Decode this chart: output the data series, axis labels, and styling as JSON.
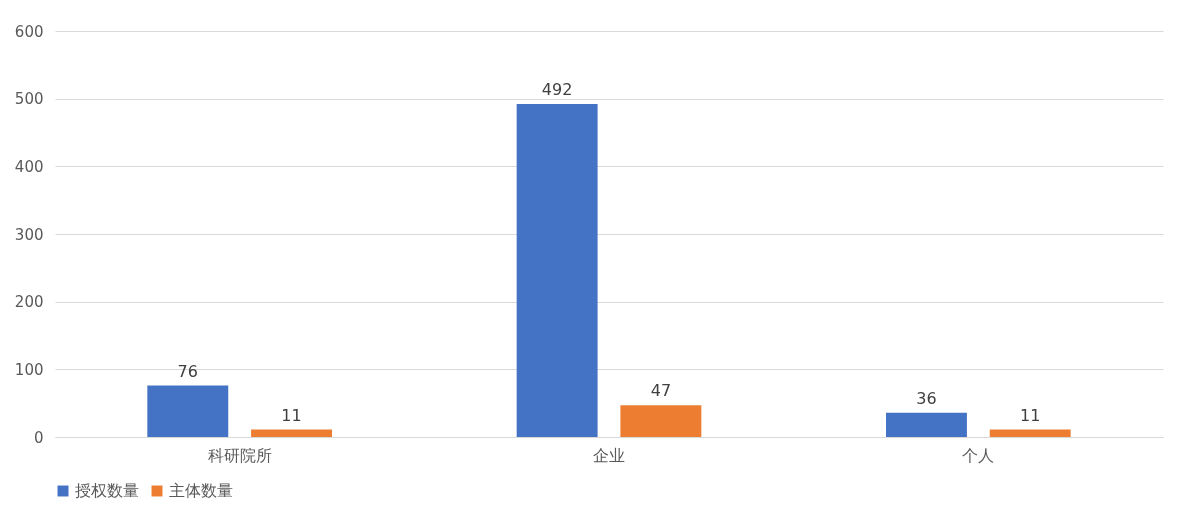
{
  "chart_data": {
    "type": "bar",
    "categories": [
      "科研院所",
      "企业",
      "个人"
    ],
    "series": [
      {
        "name": "授权数量",
        "color": "#4472c4",
        "values": [
          76,
          492,
          36
        ]
      },
      {
        "name": "主体数量",
        "color": "#ed7d31",
        "values": [
          11,
          47,
          11
        ]
      }
    ],
    "ylim": [
      0,
      600
    ],
    "yticks": [
      0,
      100,
      200,
      300,
      400,
      500,
      600
    ],
    "grid": "y",
    "legend": "bottom",
    "data_labels": true
  }
}
